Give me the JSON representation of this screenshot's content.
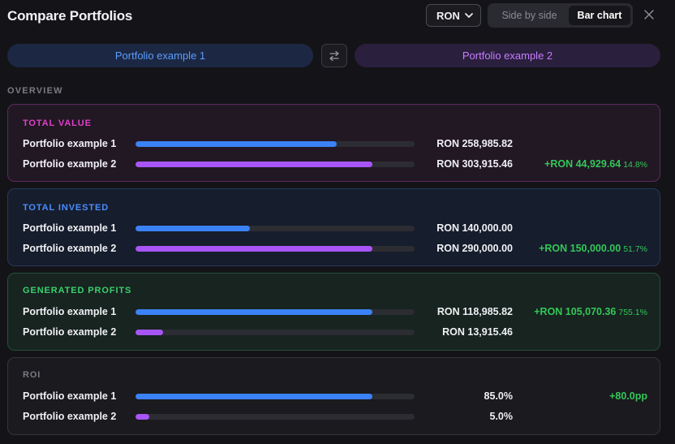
{
  "header": {
    "title": "Compare Portfolios",
    "currency": "RON",
    "views": {
      "side_by_side": "Side by side",
      "bar_chart": "Bar chart"
    },
    "active_view": "Bar chart"
  },
  "portfolios": {
    "p1": "Portfolio example 1",
    "p2": "Portfolio example 2"
  },
  "section_label": "OVERVIEW",
  "colors": {
    "portfolio_1": "#3b82f6",
    "portfolio_2": "#a855f7",
    "positive": "#34c759"
  },
  "metrics": {
    "total_value": {
      "title": "TOTAL VALUE",
      "p1_label": "Portfolio example 1",
      "p2_label": "Portfolio example 2",
      "p1_value": "RON 258,985.82",
      "p2_value": "RON 303,915.46",
      "p1_fill": 0.72,
      "p2_fill": 0.85,
      "diff": "+RON 44,929.64",
      "diff_pct": "14.8%"
    },
    "total_invested": {
      "title": "TOTAL INVESTED",
      "p1_label": "Portfolio example 1",
      "p2_label": "Portfolio example 2",
      "p1_value": "RON 140,000.00",
      "p2_value": "RON 290,000.00",
      "p1_fill": 0.41,
      "p2_fill": 0.85,
      "diff": "+RON 150,000.00",
      "diff_pct": "51.7%"
    },
    "generated_profits": {
      "title": "GENERATED PROFITS",
      "p1_label": "Portfolio example 1",
      "p2_label": "Portfolio example 2",
      "p1_value": "RON 118,985.82",
      "p2_value": "RON 13,915.46",
      "p1_fill": 0.85,
      "p2_fill": 0.1,
      "diff": "+RON 105,070.36",
      "diff_pct": "755.1%"
    },
    "roi": {
      "title": "ROI",
      "p1_label": "Portfolio example 1",
      "p2_label": "Portfolio example 2",
      "p1_value": "85.0%",
      "p2_value": "5.0%",
      "p1_fill": 0.85,
      "p2_fill": 0.05,
      "diff": "+80.0pp",
      "diff_pct": ""
    }
  }
}
